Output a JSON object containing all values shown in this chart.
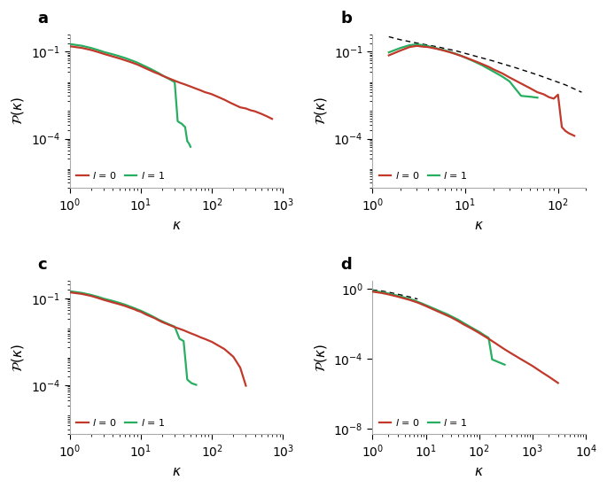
{
  "panels": [
    "a",
    "b",
    "c",
    "d"
  ],
  "red_color": "#c0392b",
  "green_color": "#27ae60",
  "dashed_color": "#000000",
  "line_width": 1.6,
  "panel_a": {
    "xlim": [
      1,
      1000
    ],
    "ylim": [
      2e-06,
      0.4
    ],
    "red_x": [
      1.0,
      1.5,
      2.0,
      2.5,
      3.0,
      4.0,
      5.0,
      6.0,
      7.0,
      8.0,
      9.0,
      10.0,
      12.0,
      14.0,
      16.0,
      18.0,
      20.0,
      25.0,
      30.0,
      35.0,
      40.0,
      50.0,
      60.0,
      70.0,
      80.0,
      90.0,
      100.0,
      120.0,
      150.0,
      180.0,
      200.0,
      250.0,
      300.0,
      350.0,
      400.0,
      500.0,
      600.0,
      700.0
    ],
    "red_y": [
      0.155,
      0.135,
      0.115,
      0.098,
      0.085,
      0.069,
      0.059,
      0.051,
      0.045,
      0.04,
      0.036,
      0.032,
      0.026,
      0.022,
      0.019,
      0.017,
      0.015,
      0.012,
      0.01,
      0.0086,
      0.0077,
      0.0063,
      0.0053,
      0.0046,
      0.004,
      0.0037,
      0.0034,
      0.0028,
      0.0022,
      0.00175,
      0.00155,
      0.0012,
      0.0011,
      0.00095,
      0.00088,
      0.00071,
      0.00058,
      0.00048
    ],
    "green_x": [
      1.0,
      1.5,
      2.0,
      2.5,
      3.0,
      4.0,
      5.0,
      6.0,
      7.0,
      8.0,
      9.0,
      10.0,
      12.0,
      14.0,
      16.0,
      18.0,
      20.0,
      22.0,
      25.0,
      28.0,
      30.0,
      33.0,
      35.0,
      38.0,
      40.0,
      42.0,
      45.0,
      48.0,
      50.0
    ],
    "green_y": [
      0.185,
      0.16,
      0.135,
      0.115,
      0.099,
      0.082,
      0.07,
      0.061,
      0.053,
      0.047,
      0.042,
      0.037,
      0.03,
      0.025,
      0.021,
      0.018,
      0.0155,
      0.0135,
      0.0115,
      0.0098,
      0.0088,
      0.0004,
      0.00036,
      0.00032,
      0.00028,
      0.00025,
      8.2e-05,
      6.5e-05,
      5.2e-05
    ]
  },
  "panel_b": {
    "xlim": [
      1,
      200
    ],
    "ylim": [
      2e-06,
      0.4
    ],
    "red_x": [
      1.5,
      2.0,
      2.5,
      3.0,
      3.5,
      4.0,
      5.0,
      6.0,
      7.0,
      8.0,
      9.0,
      10.0,
      12.0,
      14.0,
      16.0,
      18.0,
      20.0,
      25.0,
      30.0,
      40.0,
      50.0,
      60.0,
      70.0,
      80.0,
      90.0,
      100.0,
      110.0,
      120.0,
      130.0,
      150.0
    ],
    "red_y": [
      0.075,
      0.11,
      0.145,
      0.16,
      0.15,
      0.145,
      0.125,
      0.108,
      0.094,
      0.082,
      0.072,
      0.064,
      0.051,
      0.042,
      0.035,
      0.03,
      0.025,
      0.018,
      0.013,
      0.008,
      0.0055,
      0.004,
      0.0034,
      0.0027,
      0.0024,
      0.0033,
      0.00025,
      0.000185,
      0.000155,
      0.000125
    ],
    "green_x": [
      1.5,
      2.0,
      2.5,
      3.0,
      3.5,
      4.0,
      5.0,
      6.0,
      7.0,
      8.0,
      9.0,
      10.0,
      12.0,
      15.0,
      20.0,
      25.0,
      30.0,
      40.0,
      50.0,
      60.0
    ],
    "green_y": [
      0.095,
      0.135,
      0.168,
      0.18,
      0.168,
      0.155,
      0.13,
      0.112,
      0.097,
      0.084,
      0.073,
      0.063,
      0.049,
      0.035,
      0.021,
      0.014,
      0.0095,
      0.003,
      0.0028,
      0.0026
    ],
    "dashed_x": [
      1.5,
      2.0,
      3.0,
      5.0,
      8.0,
      12.0,
      20.0,
      35.0,
      60.0,
      120.0,
      180.0
    ],
    "dashed_y": [
      0.33,
      0.26,
      0.2,
      0.148,
      0.107,
      0.075,
      0.048,
      0.028,
      0.016,
      0.0072,
      0.004
    ]
  },
  "panel_c": {
    "xlim": [
      1,
      1000
    ],
    "ylim": [
      2e-06,
      0.4
    ],
    "red_x": [
      1.0,
      1.5,
      2.0,
      2.5,
      3.0,
      4.0,
      5.0,
      6.0,
      7.0,
      8.0,
      9.0,
      10.0,
      12.0,
      14.0,
      16.0,
      18.0,
      20.0,
      25.0,
      30.0,
      35.0,
      40.0,
      50.0,
      60.0,
      70.0,
      80.0,
      100.0,
      120.0,
      150.0,
      200.0,
      250.0,
      300.0
    ],
    "red_y": [
      0.16,
      0.14,
      0.12,
      0.102,
      0.088,
      0.072,
      0.062,
      0.054,
      0.047,
      0.042,
      0.037,
      0.034,
      0.027,
      0.023,
      0.02,
      0.017,
      0.015,
      0.012,
      0.01,
      0.0088,
      0.0078,
      0.0062,
      0.0052,
      0.0044,
      0.0039,
      0.0031,
      0.0024,
      0.00175,
      0.00095,
      0.0004,
      9.5e-05
    ],
    "green_x": [
      1.0,
      1.5,
      2.0,
      2.5,
      3.0,
      4.0,
      5.0,
      6.0,
      7.0,
      8.0,
      9.0,
      10.0,
      12.0,
      14.0,
      16.0,
      18.0,
      20.0,
      25.0,
      30.0,
      35.0,
      40.0,
      45.0,
      48.0,
      50.0,
      52.0,
      55.0,
      58.0,
      60.0
    ],
    "green_y": [
      0.175,
      0.152,
      0.13,
      0.112,
      0.097,
      0.081,
      0.069,
      0.06,
      0.052,
      0.046,
      0.041,
      0.037,
      0.03,
      0.025,
      0.021,
      0.018,
      0.016,
      0.0125,
      0.0104,
      0.004,
      0.0033,
      0.000155,
      0.000135,
      0.000125,
      0.000115,
      0.00011,
      0.000105,
      0.000102
    ]
  },
  "panel_d": {
    "xlim": [
      1,
      10000
    ],
    "ylim": [
      5e-09,
      3
    ],
    "red_x": [
      1.0,
      1.5,
      2.0,
      3.0,
      4.0,
      5.0,
      6.0,
      7.0,
      8.0,
      10.0,
      12.0,
      15.0,
      20.0,
      25.0,
      30.0,
      40.0,
      50.0,
      70.0,
      100.0,
      120.0,
      150.0,
      200.0,
      250.0,
      300.0,
      400.0,
      500.0,
      600.0,
      800.0,
      1000.0,
      1500.0,
      2000.0,
      3000.0
    ],
    "red_y": [
      0.72,
      0.6,
      0.5,
      0.37,
      0.29,
      0.24,
      0.2,
      0.17,
      0.145,
      0.108,
      0.084,
      0.062,
      0.042,
      0.031,
      0.024,
      0.015,
      0.01,
      0.0058,
      0.0031,
      0.0022,
      0.00145,
      0.00082,
      0.00052,
      0.00036,
      0.00021,
      0.00014,
      0.0001,
      6e-05,
      4e-05,
      1.75e-05,
      1e-05,
      4.3e-06
    ],
    "green_x": [
      1.0,
      1.5,
      2.0,
      3.0,
      4.0,
      5.0,
      6.0,
      7.0,
      8.0,
      10.0,
      12.0,
      15.0,
      20.0,
      25.0,
      30.0,
      40.0,
      50.0,
      70.0,
      100.0,
      120.0,
      150.0,
      175.0,
      200.0,
      250.0,
      300.0
    ],
    "green_y": [
      0.8,
      0.67,
      0.56,
      0.42,
      0.33,
      0.27,
      0.23,
      0.19,
      0.162,
      0.122,
      0.096,
      0.072,
      0.049,
      0.037,
      0.028,
      0.018,
      0.012,
      0.0066,
      0.0036,
      0.0025,
      0.00165,
      9.5e-05,
      8e-05,
      6e-05,
      4.8e-05
    ],
    "dashed_x": [
      1.0,
      1.5,
      2.0,
      3.0,
      5.0,
      7.0
    ],
    "dashed_y": [
      0.9,
      0.78,
      0.67,
      0.51,
      0.355,
      0.272
    ]
  }
}
